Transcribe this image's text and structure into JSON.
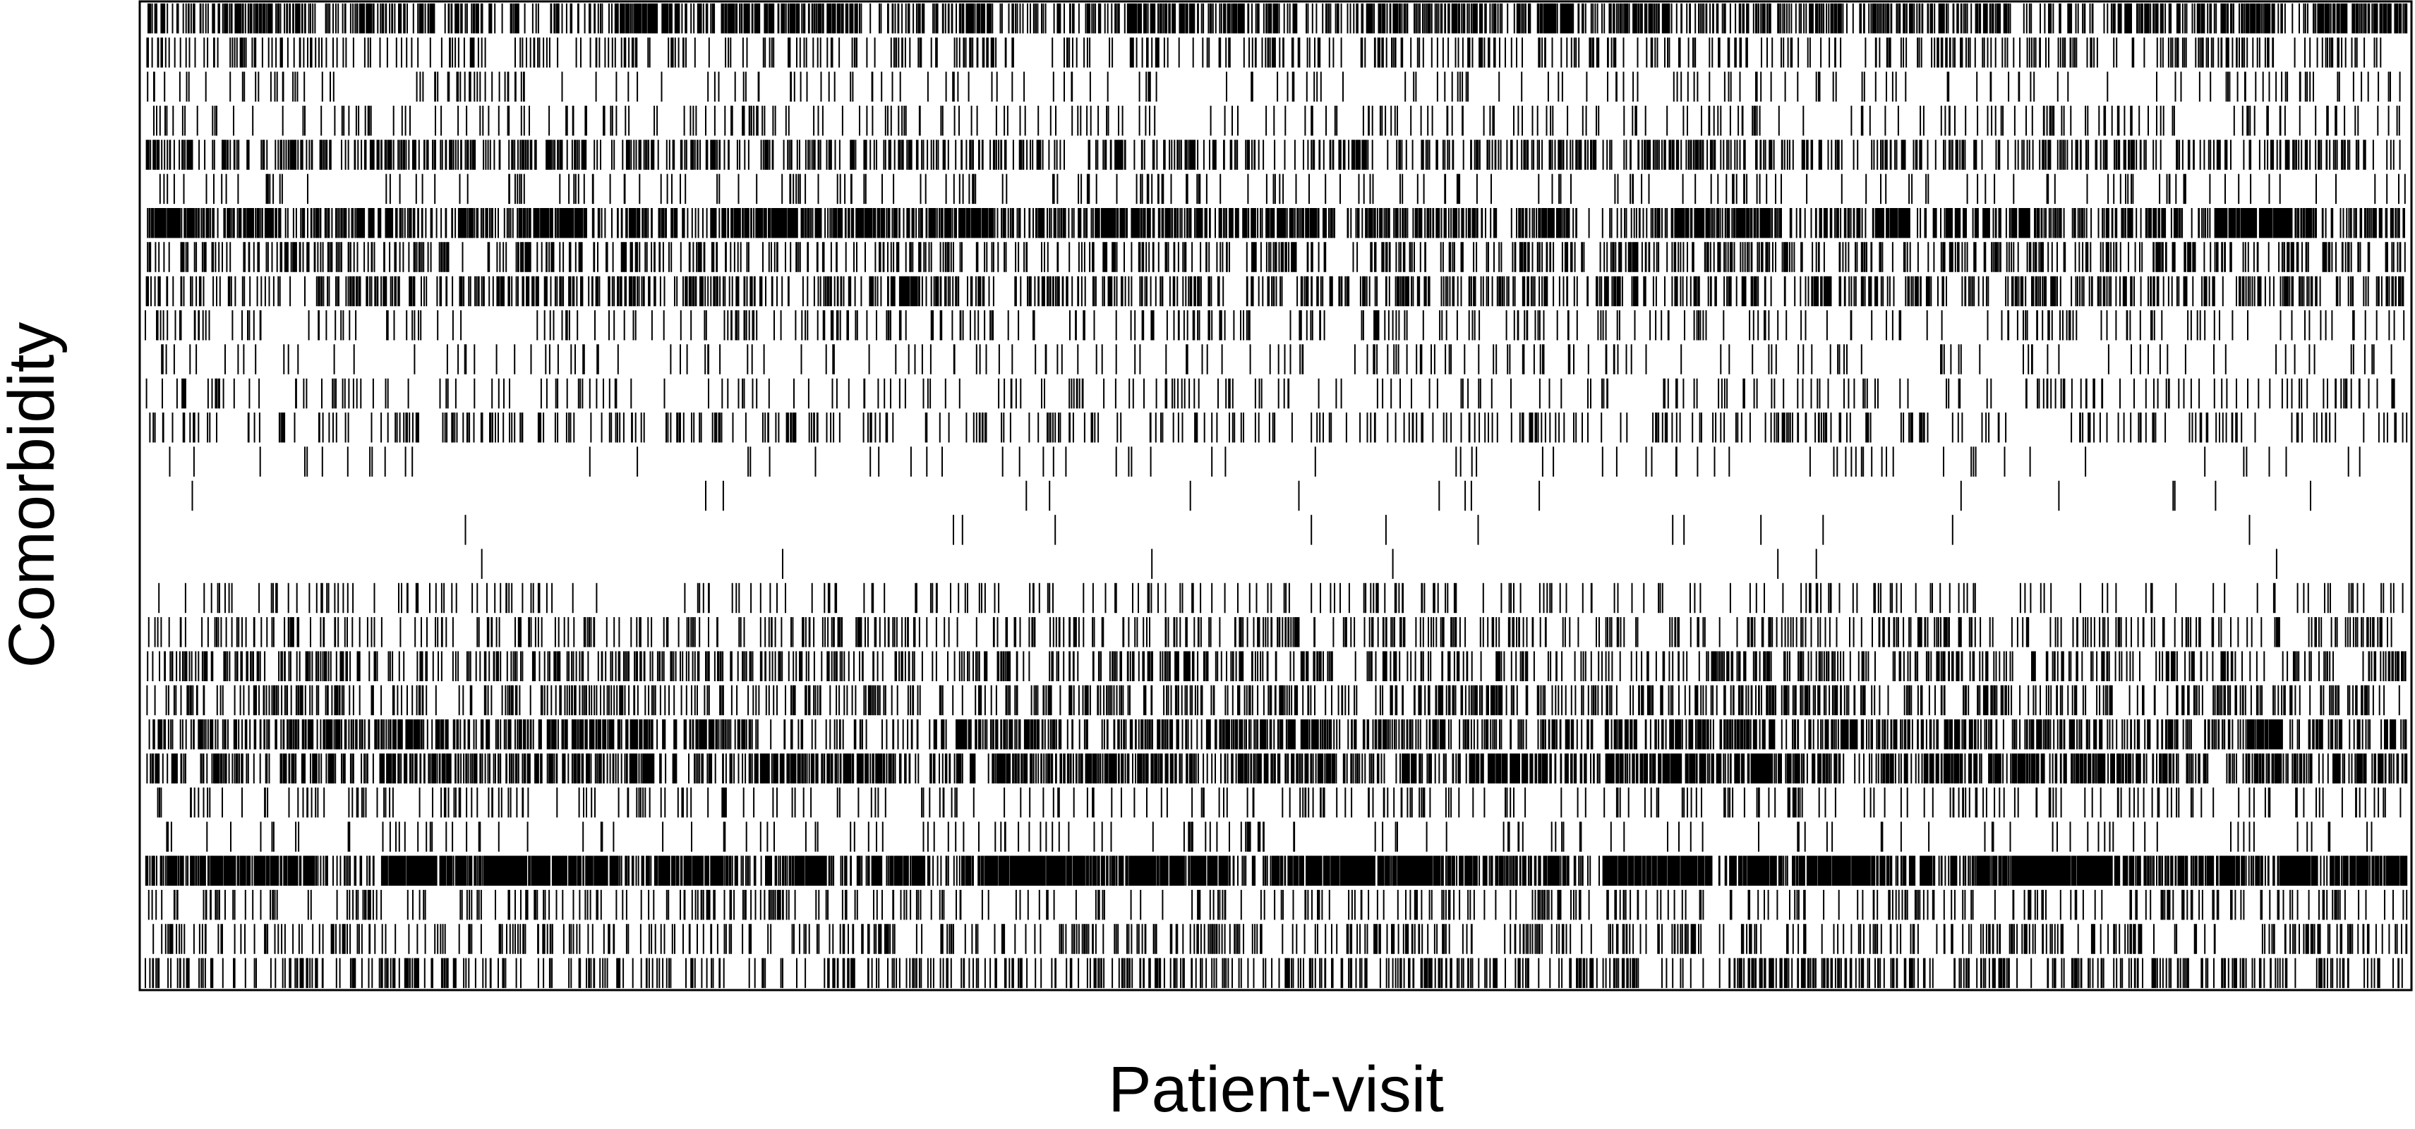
{
  "chart_data": {
    "type": "heatmap",
    "title": "",
    "xlabel": "Patient-visit",
    "ylabel": "Comorbidity",
    "x_ticks": "none",
    "y_ticks": "none",
    "grid": false,
    "legend": "none",
    "n_rows": 29,
    "n_cols": 4000,
    "encoding": "binary presence matrix: a vertical black tick marks that a comorbidity (row) is present at a patient-visit (column)",
    "row_density": [
      0.34,
      0.12,
      0.05,
      0.07,
      0.21,
      0.05,
      0.38,
      0.16,
      0.2,
      0.07,
      0.04,
      0.06,
      0.09,
      0.02,
      0.003,
      0.003,
      0.002,
      0.06,
      0.12,
      0.17,
      0.17,
      0.28,
      0.34,
      0.07,
      0.04,
      0.55,
      0.1,
      0.12,
      0.17
    ],
    "colors": {
      "present": "#000000",
      "absent": "#ffffff",
      "frame": "#000000"
    }
  }
}
